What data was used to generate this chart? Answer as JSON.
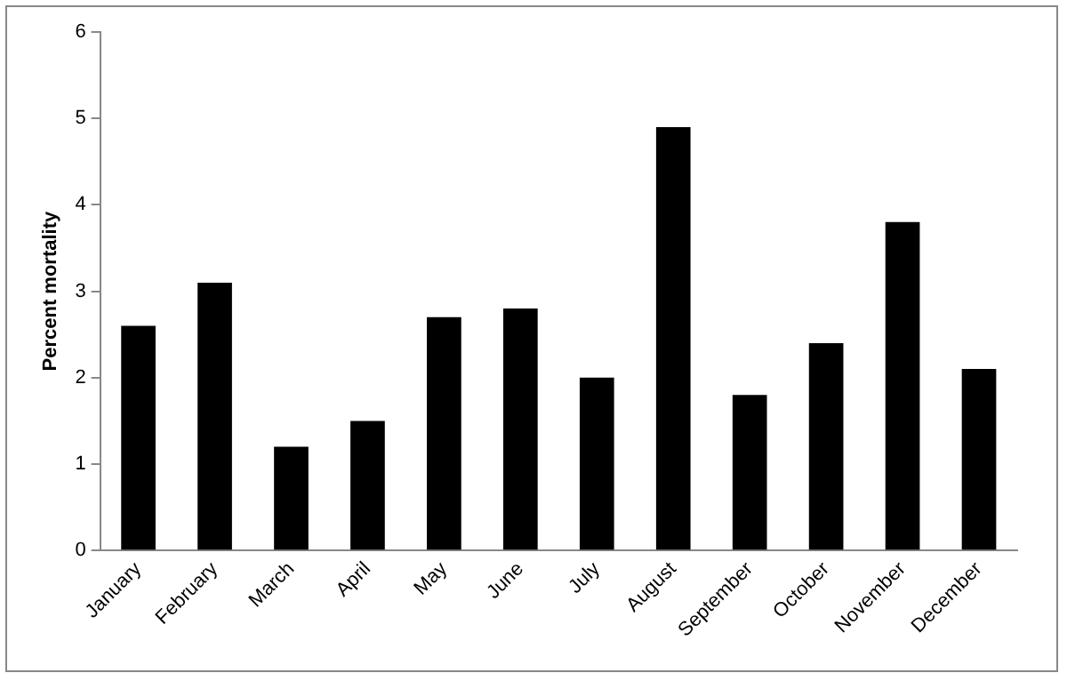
{
  "chart_data": {
    "type": "bar",
    "ylabel": "Percent mortality",
    "categories": [
      "January",
      "February",
      "March",
      "April",
      "May",
      "June",
      "July",
      "August",
      "September",
      "October",
      "November",
      "December"
    ],
    "values": [
      2.6,
      3.1,
      1.2,
      1.5,
      2.7,
      2.8,
      2.0,
      4.9,
      1.8,
      2.4,
      3.8,
      2.1
    ],
    "color": "#000000",
    "ylim": [
      0,
      6
    ],
    "yticks": [
      0,
      1,
      2,
      3,
      4,
      5,
      6
    ],
    "grid": false,
    "legend": false
  }
}
